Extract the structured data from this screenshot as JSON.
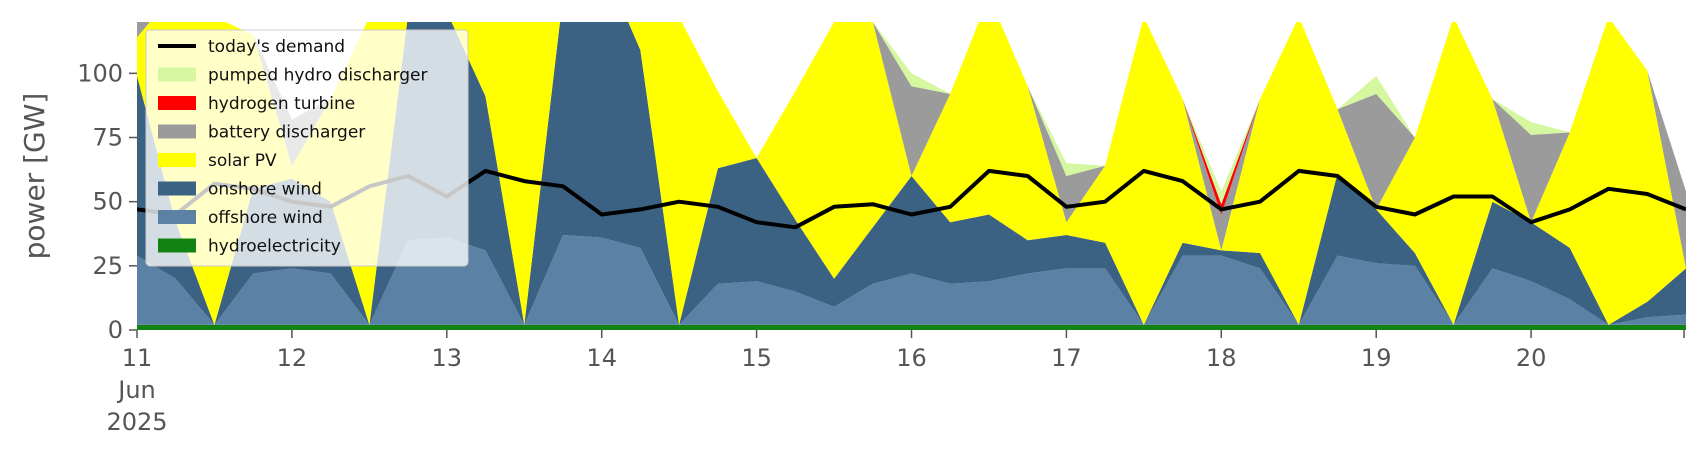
{
  "chart_data": {
    "type": "area",
    "ylabel": "power [GW]",
    "xlabel": "",
    "x_unit": "days of June 2025",
    "xlim": [
      11,
      21
    ],
    "ylim": [
      0,
      120
    ],
    "y_ticks": [
      0,
      25,
      50,
      75,
      100
    ],
    "x_ticks": [
      {
        "value": 11,
        "label": "11"
      },
      {
        "value": 12,
        "label": "12"
      },
      {
        "value": 13,
        "label": "13"
      },
      {
        "value": 14,
        "label": "14"
      },
      {
        "value": 15,
        "label": "15"
      },
      {
        "value": 16,
        "label": "16"
      },
      {
        "value": 17,
        "label": "17"
      },
      {
        "value": 18,
        "label": "18"
      },
      {
        "value": 19,
        "label": "19"
      },
      {
        "value": 20,
        "label": "20"
      }
    ],
    "x_first_tick_sublabels": [
      "Jun",
      "2025"
    ],
    "grid": false,
    "legend_position": "top-left",
    "x": [
      11.0,
      11.25,
      11.5,
      11.75,
      12.0,
      12.25,
      12.5,
      12.75,
      13.0,
      13.25,
      13.5,
      13.75,
      14.0,
      14.25,
      14.5,
      14.75,
      15.0,
      15.25,
      15.5,
      15.75,
      16.0,
      16.25,
      16.5,
      16.75,
      17.0,
      17.25,
      17.5,
      17.75,
      18.0,
      18.25,
      18.5,
      18.75,
      19.0,
      19.25,
      19.5,
      19.75,
      20.0,
      20.25,
      20.5,
      20.75,
      21.0
    ],
    "series": [
      {
        "name": "hydroelectricity",
        "color": "#128212",
        "values": [
          2,
          2,
          2,
          2,
          2,
          2,
          2,
          2,
          2,
          2,
          2,
          2,
          2,
          2,
          2,
          2,
          2,
          2,
          2,
          2,
          2,
          2,
          2,
          2,
          2,
          2,
          2,
          2,
          2,
          2,
          2,
          2,
          2,
          2,
          2,
          2,
          2,
          2,
          2,
          2,
          2
        ]
      },
      {
        "name": "offshore wind",
        "color": "#5b82a5",
        "values": [
          27,
          18,
          0,
          20,
          22,
          20,
          0,
          33,
          34,
          29,
          0,
          35,
          34,
          30,
          0,
          16,
          17,
          13,
          7,
          16,
          20,
          16,
          17,
          20,
          22,
          22,
          0,
          27,
          27,
          22,
          0,
          27,
          24,
          23,
          0,
          22,
          17,
          10,
          0,
          3,
          4
        ]
      },
      {
        "name": "onshore wind",
        "color": "#3b6183",
        "values": [
          70,
          22,
          0,
          33,
          35,
          28,
          0,
          88,
          88,
          60,
          0,
          93,
          108,
          77,
          0,
          45,
          48,
          28,
          11,
          22,
          38,
          24,
          26,
          13,
          13,
          10,
          0,
          5,
          2,
          6,
          0,
          32,
          21,
          5,
          0,
          26,
          23,
          20,
          0,
          6,
          18
        ]
      },
      {
        "name": "solar PV",
        "color": "#ffff00",
        "values": [
          15,
          90,
          120,
          60,
          5,
          40,
          120,
          0,
          0,
          30,
          120,
          0,
          0,
          13,
          120,
          30,
          0,
          50,
          100,
          80,
          0,
          50,
          85,
          60,
          5,
          30,
          120,
          56,
          0,
          60,
          120,
          25,
          0,
          45,
          120,
          40,
          0,
          45,
          120,
          90,
          0
        ]
      },
      {
        "name": "battery discharger",
        "color": "#9b9b9b",
        "values": [
          8,
          0,
          0,
          0,
          18,
          0,
          0,
          0,
          8,
          0,
          0,
          0,
          0,
          0,
          0,
          0,
          0,
          0,
          0,
          0,
          35,
          0,
          0,
          0,
          18,
          0,
          0,
          0,
          14,
          0,
          0,
          0,
          45,
          0,
          0,
          0,
          34,
          0,
          0,
          0,
          30
        ]
      },
      {
        "name": "hydrogen turbine",
        "color": "#ff0000",
        "values": [
          0,
          0,
          0,
          0,
          0,
          0,
          0,
          0,
          0,
          0,
          0,
          0,
          0,
          0,
          0,
          0,
          0,
          0,
          0,
          0,
          0,
          0,
          0,
          0,
          0,
          0,
          0,
          0,
          4,
          0,
          0,
          0,
          0,
          0,
          0,
          0,
          0,
          0,
          0,
          0,
          0
        ]
      },
      {
        "name": "pumped hydro discharger",
        "color": "#d5f7a0",
        "values": [
          0,
          0,
          0,
          0,
          0,
          0,
          0,
          0,
          0,
          0,
          0,
          0,
          0,
          0,
          0,
          0,
          0,
          0,
          0,
          0,
          5,
          0,
          0,
          0,
          5,
          0,
          0,
          0,
          5,
          0,
          0,
          0,
          7,
          0,
          0,
          0,
          5,
          0,
          0,
          0,
          0
        ]
      }
    ],
    "demand": {
      "name": "today's demand",
      "color": "#000000",
      "values": [
        47,
        45,
        57,
        55,
        50,
        48,
        56,
        60,
        52,
        62,
        58,
        56,
        45,
        47,
        50,
        48,
        42,
        40,
        48,
        49,
        45,
        48,
        62,
        60,
        48,
        50,
        62,
        58,
        47,
        50,
        62,
        60,
        48,
        45,
        52,
        52,
        42,
        47,
        55,
        53,
        47
      ]
    },
    "legend_order": [
      "today's demand",
      "pumped hydro discharger",
      "hydrogen turbine",
      "battery discharger",
      "solar PV",
      "onshore wind",
      "offshore wind",
      "hydroelectricity"
    ]
  }
}
